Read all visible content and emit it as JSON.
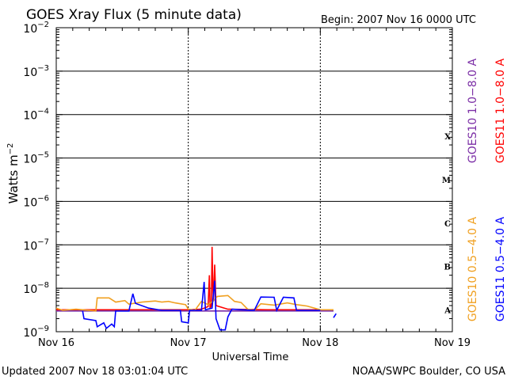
{
  "chart_data": {
    "type": "line",
    "title": "GOES Xray Flux (5 minute data)",
    "begin_label": "Begin:  2007 Nov 16 0000 UTC",
    "xlabel": "Universal Time",
    "ylabel": "Watts m",
    "ylabel_exp": "−2",
    "updated_label": "Updated 2007 Nov 18 03:01:04 UTC",
    "credit_label": "NOAA/SWPC Boulder, CO USA",
    "y_scale": "log",
    "ylim": [
      1e-09,
      0.01
    ],
    "x_days": [
      "Nov 16",
      "Nov 17",
      "Nov 18",
      "Nov 19"
    ],
    "y_ticks": [
      {
        "base": "10",
        "exp": "−2"
      },
      {
        "base": "10",
        "exp": "−3"
      },
      {
        "base": "10",
        "exp": "−4"
      },
      {
        "base": "10",
        "exp": "−5"
      },
      {
        "base": "10",
        "exp": "−6"
      },
      {
        "base": "10",
        "exp": "−7"
      },
      {
        "base": "10",
        "exp": "−8"
      },
      {
        "base": "10",
        "exp": "−9"
      }
    ],
    "flare_classes": [
      "X",
      "M",
      "C",
      "B",
      "A"
    ],
    "legend": [
      {
        "label": "GOES10 1.0−8.0 A",
        "color": "#7b2ea6"
      },
      {
        "label": "GOES11 1.0−8.0 A",
        "color": "#ff0000"
      },
      {
        "label": "GOES10 0.5−4.0 A",
        "color": "#f0a020"
      },
      {
        "label": "GOES11 0.5−4.0 A",
        "color": "#0000ff"
      }
    ],
    "series": [
      {
        "key": "g11_long",
        "color": "#ff0000",
        "points": [
          [
            0.0,
            3.2e-09
          ],
          [
            1.0,
            3.2e-09
          ],
          [
            1.1,
            3.3e-09
          ],
          [
            1.15,
            3.8e-09
          ],
          [
            1.16,
            2e-08
          ],
          [
            1.165,
            3.5e-09
          ],
          [
            1.175,
            4e-09
          ],
          [
            1.18,
            9e-08
          ],
          [
            1.185,
            1.5e-08
          ],
          [
            1.19,
            5e-09
          ],
          [
            1.2,
            3.5e-08
          ],
          [
            1.21,
            4e-09
          ],
          [
            1.3,
            3.3e-09
          ],
          [
            1.6,
            3.2e-09
          ],
          [
            2.1,
            3.2e-09
          ]
        ]
      },
      {
        "key": "g10_long",
        "color": "#7b2ea6",
        "points": [
          [
            0.0,
            3e-09
          ],
          [
            2.1,
            3e-09
          ]
        ]
      },
      {
        "key": "g10_short",
        "color": "#f0a020",
        "points": [
          [
            0.0,
            3.5e-09
          ],
          [
            0.05,
            3.1e-09
          ],
          [
            0.15,
            3.3e-09
          ],
          [
            0.3,
            3e-09
          ],
          [
            0.31,
            6e-09
          ],
          [
            0.4,
            6e-09
          ],
          [
            0.45,
            4.8e-09
          ],
          [
            0.52,
            5.2e-09
          ],
          [
            0.55,
            4.3e-09
          ],
          [
            0.65,
            4.8e-09
          ],
          [
            0.75,
            5.1e-09
          ],
          [
            0.8,
            4.8e-09
          ],
          [
            0.85,
            5e-09
          ],
          [
            0.9,
            4.6e-09
          ],
          [
            0.98,
            4.2e-09
          ],
          [
            1.0,
            3.3e-09
          ],
          [
            1.05,
            3.1e-09
          ],
          [
            1.1,
            5e-09
          ],
          [
            1.15,
            4.2e-09
          ],
          [
            1.2,
            5.5e-09
          ],
          [
            1.22,
            6.5e-09
          ],
          [
            1.3,
            6.8e-09
          ],
          [
            1.35,
            5e-09
          ],
          [
            1.4,
            4.7e-09
          ],
          [
            1.45,
            3.3e-09
          ],
          [
            1.5,
            3.1e-09
          ],
          [
            1.55,
            4.4e-09
          ],
          [
            1.65,
            4.1e-09
          ],
          [
            1.75,
            4.6e-09
          ],
          [
            1.82,
            4.2e-09
          ],
          [
            1.9,
            3.9e-09
          ],
          [
            2.0,
            3.2e-09
          ],
          [
            2.1,
            3.2e-09
          ]
        ]
      },
      {
        "key": "g11_short",
        "color": "#0000ff",
        "points": [
          [
            0.2,
            3e-09
          ],
          [
            0.21,
            2e-09
          ],
          [
            0.3,
            1.8e-09
          ],
          [
            0.31,
            1.3e-09
          ],
          [
            0.36,
            1.6e-09
          ],
          [
            0.38,
            1.2e-09
          ],
          [
            0.42,
            1.5e-09
          ],
          [
            0.44,
            1.3e-09
          ],
          [
            0.45,
            3e-09
          ],
          [
            0.55,
            3e-09
          ],
          [
            0.58,
            7.5e-09
          ],
          [
            0.6,
            4.5e-09
          ],
          [
            0.7,
            3.5e-09
          ],
          [
            0.8,
            3.1e-09
          ],
          [
            0.94,
            3.1e-09
          ],
          [
            0.95,
            1.7e-09
          ],
          [
            1.0,
            1.6e-09
          ],
          [
            1.01,
            3.1e-09
          ],
          [
            1.1,
            3.1e-09
          ],
          [
            1.12,
            1.4e-08
          ],
          [
            1.13,
            3.2e-09
          ],
          [
            1.18,
            3.5e-09
          ],
          [
            1.2,
            1.5e-08
          ],
          [
            1.21,
            2e-09
          ],
          [
            1.24,
            1.1e-09
          ],
          [
            1.28,
            1.1e-09
          ],
          [
            1.3,
            2.2e-09
          ],
          [
            1.33,
            3.3e-09
          ],
          [
            1.5,
            3.1e-09
          ],
          [
            1.55,
            6.3e-09
          ],
          [
            1.65,
            6.2e-09
          ],
          [
            1.67,
            3.1e-09
          ],
          [
            1.72,
            6.2e-09
          ],
          [
            1.8,
            6e-09
          ],
          [
            1.82,
            3.1e-09
          ],
          [
            1.95,
            3.1e-09
          ],
          [
            2.0,
            3.1e-09
          ]
        ]
      },
      {
        "key": "g11_short_tail",
        "color": "#0000ff",
        "points": [
          [
            2.1,
            2.1e-09
          ],
          [
            2.12,
            2.6e-09
          ]
        ]
      }
    ]
  }
}
